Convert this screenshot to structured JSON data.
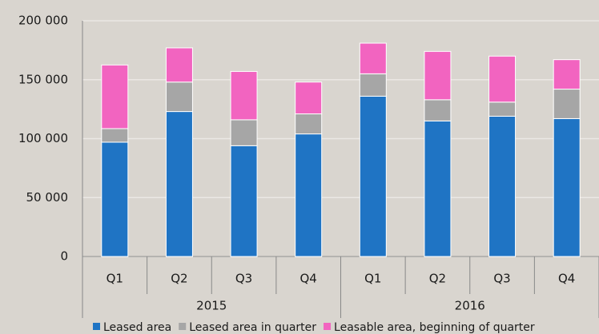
{
  "chart_data": {
    "type": "stacked_bar",
    "categories": [
      "Q1",
      "Q2",
      "Q3",
      "Q4",
      "Q1",
      "Q2",
      "Q3",
      "Q4"
    ],
    "groups": [
      "2015",
      "2016"
    ],
    "series": [
      {
        "name": "Leased area",
        "color": "#1f74c4",
        "values": [
          97000,
          123000,
          94000,
          104000,
          136000,
          115000,
          119000,
          117000
        ]
      },
      {
        "name": "Leased area in quarter",
        "color": "#a6a6a6",
        "values": [
          11500,
          25000,
          22000,
          17000,
          19000,
          18000,
          12000,
          25000
        ]
      },
      {
        "name": "Leasable area, beginning of quarter",
        "color": "#f264c0",
        "values": [
          54000,
          29000,
          41000,
          27000,
          26000,
          41000,
          39000,
          25000
        ]
      }
    ],
    "ylim": [
      0,
      200000
    ],
    "yticks": [
      0,
      {
        "value": 50000,
        "label": "50 000"
      },
      {
        "value": 100000,
        "label": "100 000"
      },
      {
        "value": 150000,
        "label": "150 000"
      },
      {
        "value": 200000,
        "label": "200 000"
      }
    ],
    "grid": true
  }
}
